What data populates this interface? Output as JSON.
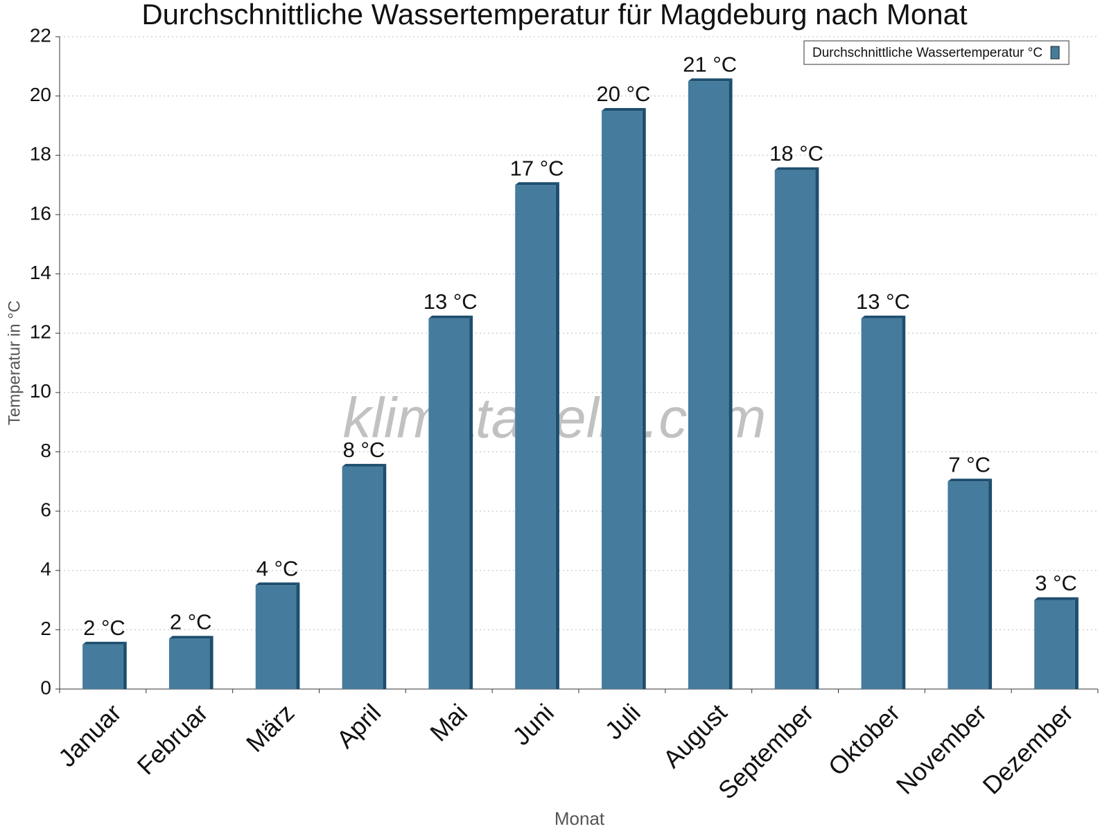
{
  "chart_data": {
    "type": "bar",
    "title": "Durchschnittliche Wassertemperatur für Magdeburg nach Monat",
    "x_label": "Monat",
    "y_label": "Temperatur in °C",
    "watermark": "klimatabelle.com",
    "categories": [
      "Januar",
      "Februar",
      "März",
      "April",
      "Mai",
      "Juni",
      "Juli",
      "August",
      "September",
      "Oktober",
      "November",
      "Dezember"
    ],
    "series": [
      {
        "name": "Durchschnittliche Wassertemperatur °C",
        "color": "#457b9d",
        "values": [
          1.5,
          1.7,
          3.5,
          7.5,
          12.5,
          17,
          19.5,
          20.5,
          17.5,
          12.5,
          7,
          3
        ],
        "value_labels": [
          "2 °C",
          "2 °C",
          "4 °C",
          "8 °C",
          "13 °C",
          "17 °C",
          "20 °C",
          "21 °C",
          "18 °C",
          "13 °C",
          "7 °C",
          "3 °C"
        ]
      }
    ],
    "ylim": [
      0,
      22
    ],
    "yticks": [
      0,
      2,
      4,
      6,
      8,
      10,
      12,
      14,
      16,
      18,
      20,
      22
    ],
    "grid": true,
    "legend": "top-right"
  }
}
